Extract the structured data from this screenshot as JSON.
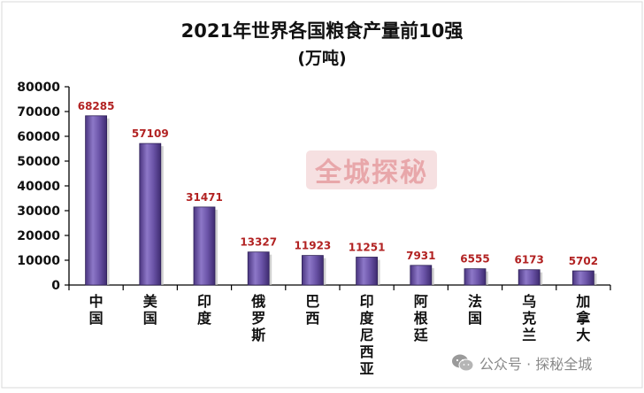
{
  "chart_data": {
    "type": "bar",
    "title": "2021年世界各国粮食产量前10强",
    "subtitle": "(万吨)",
    "categories": [
      "中国",
      "美国",
      "印度",
      "俄罗斯",
      "巴西",
      "印度尼西亚",
      "阿根廷",
      "法国",
      "乌克兰",
      "加拿大"
    ],
    "values": [
      68285,
      57109,
      31471,
      13327,
      11923,
      11251,
      7931,
      6555,
      6173,
      5702
    ],
    "ylim": [
      0,
      80000
    ],
    "yticks": [
      0,
      10000,
      20000,
      30000,
      40000,
      50000,
      60000,
      70000,
      80000
    ],
    "grid": false,
    "bar_color": "#6a52a3",
    "label_color": "#b22222"
  },
  "watermark": "全城探秘",
  "footer": "公众号 · 探秘全城",
  "footer_icon": "wechat-icon"
}
